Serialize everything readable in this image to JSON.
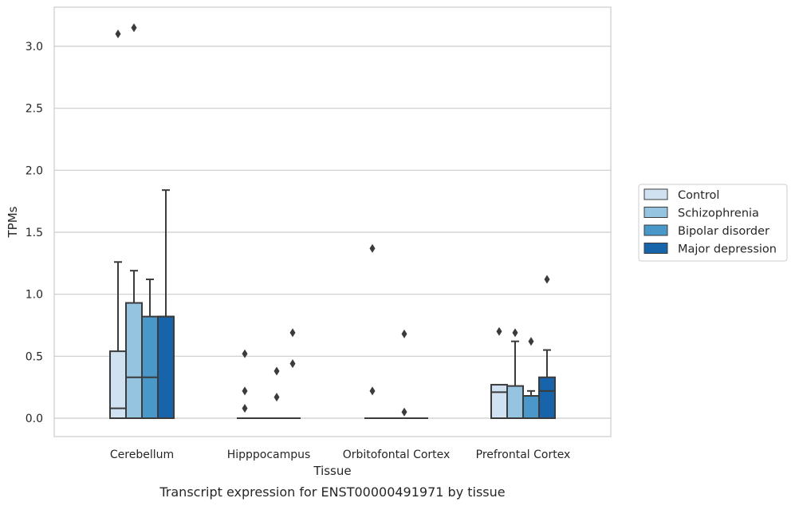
{
  "chart_data": {
    "type": "box",
    "title": "",
    "caption": "Transcript expression for ENST00000491971 by tissue",
    "xlabel": "Tissue",
    "ylabel": "TPMs",
    "ylim": [
      -0.15,
      3.3
    ],
    "yticks": [
      0.0,
      0.5,
      1.0,
      1.5,
      2.0,
      2.5,
      3.0
    ],
    "ytick_labels": [
      "0.0",
      "0.5",
      "1.0",
      "1.5",
      "2.0",
      "2.5",
      "3.0"
    ],
    "grid": "horizontal",
    "legend_position": "right",
    "categories": [
      "Cerebellum",
      "Hipppocampus",
      "Orbitofontal Cortex",
      "Prefrontal Cortex"
    ],
    "series": [
      {
        "name": "Control",
        "color": "#d0e1f2",
        "boxes": [
          {
            "q1": 0.0,
            "median": 0.08,
            "q3": 0.54,
            "whisker_low": 0.0,
            "whisker_high": 1.26,
            "outliers": [
              3.1
            ]
          },
          {
            "q1": 0.0,
            "median": 0.0,
            "q3": 0.0,
            "whisker_low": 0.0,
            "whisker_high": 0.0,
            "outliers": [
              0.08,
              0.22,
              0.52
            ]
          },
          {
            "q1": 0.0,
            "median": 0.0,
            "q3": 0.0,
            "whisker_low": 0.0,
            "whisker_high": 0.0,
            "outliers": [
              0.22,
              1.37
            ]
          },
          {
            "q1": 0.0,
            "median": 0.21,
            "q3": 0.27,
            "whisker_low": 0.0,
            "whisker_high": 0.27,
            "outliers": [
              0.7
            ]
          }
        ]
      },
      {
        "name": "Schizophrenia",
        "color": "#94c4df",
        "boxes": [
          {
            "q1": 0.0,
            "median": 0.33,
            "q3": 0.93,
            "whisker_low": 0.0,
            "whisker_high": 1.19,
            "outliers": [
              3.15
            ]
          },
          {
            "q1": 0.0,
            "median": 0.0,
            "q3": 0.0,
            "whisker_low": 0.0,
            "whisker_high": 0.0,
            "outliers": []
          },
          {
            "q1": 0.0,
            "median": 0.0,
            "q3": 0.0,
            "whisker_low": 0.0,
            "whisker_high": 0.0,
            "outliers": []
          },
          {
            "q1": 0.0,
            "median": 0.0,
            "q3": 0.26,
            "whisker_low": 0.0,
            "whisker_high": 0.62,
            "outliers": [
              0.69
            ]
          }
        ]
      },
      {
        "name": "Bipolar disorder",
        "color": "#4a98c9",
        "boxes": [
          {
            "q1": 0.0,
            "median": 0.33,
            "q3": 0.82,
            "whisker_low": 0.0,
            "whisker_high": 1.12,
            "outliers": []
          },
          {
            "q1": 0.0,
            "median": 0.0,
            "q3": 0.0,
            "whisker_low": 0.0,
            "whisker_high": 0.0,
            "outliers": [
              0.17,
              0.38
            ]
          },
          {
            "q1": 0.0,
            "median": 0.0,
            "q3": 0.0,
            "whisker_low": 0.0,
            "whisker_high": 0.0,
            "outliers": [
              0.05,
              0.68
            ]
          },
          {
            "q1": 0.0,
            "median": 0.18,
            "q3": 0.18,
            "whisker_low": 0.0,
            "whisker_high": 0.22,
            "outliers": [
              0.62
            ]
          }
        ]
      },
      {
        "name": "Major depression",
        "color": "#1764ab",
        "boxes": [
          {
            "q1": 0.0,
            "median": 0.82,
            "q3": 0.82,
            "whisker_low": 0.0,
            "whisker_high": 1.84,
            "outliers": []
          },
          {
            "q1": 0.0,
            "median": 0.0,
            "q3": 0.0,
            "whisker_low": 0.0,
            "whisker_high": 0.0,
            "outliers": [
              0.44,
              0.69
            ]
          },
          {
            "q1": 0.0,
            "median": 0.0,
            "q3": 0.0,
            "whisker_low": 0.0,
            "whisker_high": 0.0,
            "outliers": []
          },
          {
            "q1": 0.0,
            "median": 0.22,
            "q3": 0.33,
            "whisker_low": 0.0,
            "whisker_high": 0.55,
            "outliers": [
              1.12
            ]
          }
        ]
      }
    ]
  }
}
